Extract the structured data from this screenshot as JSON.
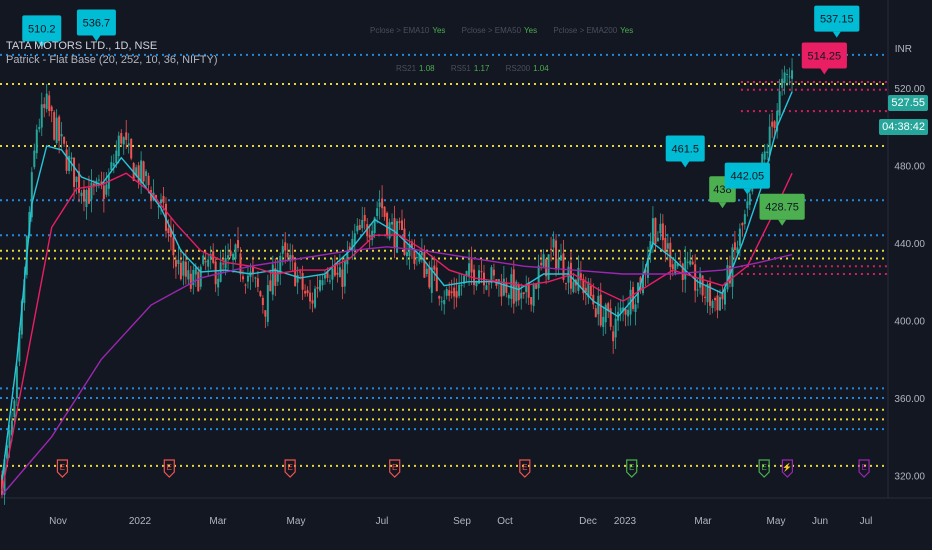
{
  "header": {
    "symbol_line": "TATA MOTORS LTD., 1D, NSE",
    "indicator_line": "Patrick - Flat Base (20, 252, 10, 36, NIFTY)"
  },
  "ema_panel": {
    "row1": [
      {
        "label": "Pclose > EMA10",
        "value": "Yes"
      },
      {
        "label": "Pclose > EMA50",
        "value": "Yes"
      },
      {
        "label": "Pclose > EMA200",
        "value": "Yes"
      }
    ],
    "row2": [
      {
        "label": "RS21",
        "value": "1.08"
      },
      {
        "label": "RS51",
        "value": "1.17"
      },
      {
        "label": "RS200",
        "value": "1.04"
      }
    ]
  },
  "price_axis": {
    "currency": "INR",
    "current_price": "527.55",
    "countdown": "04:38:42"
  },
  "colors": {
    "background": "#131722",
    "up": "#26a69a",
    "down": "#ef5350",
    "ema_short": "#26c6da",
    "ema_mid": "#e91e63",
    "ema_long": "#9c27b0",
    "level_blue": "#2196f3",
    "level_yellow": "#ffeb3b",
    "marker_cyan": "#00bcd4",
    "marker_green": "#4caf50",
    "marker_pink": "#e91e63"
  },
  "chart_data": {
    "type": "candlestick",
    "title": "TATA MOTORS LTD., 1D, NSE",
    "x_ticks": [
      "Nov",
      "2022",
      "Mar",
      "May",
      "Jul",
      "Sep",
      "Oct",
      "Dec",
      "2023",
      "Mar",
      "May",
      "Jun",
      "Jul"
    ],
    "y_ticks": [
      320,
      360,
      400,
      440,
      480,
      520
    ],
    "ylim": [
      310,
      555
    ],
    "grid": false,
    "close_path": [
      [
        0,
        318
      ],
      [
        5,
        352
      ],
      [
        10,
        440
      ],
      [
        14,
        500
      ],
      [
        18,
        510
      ],
      [
        24,
        490
      ],
      [
        30,
        472
      ],
      [
        36,
        465
      ],
      [
        42,
        468
      ],
      [
        48,
        496
      ],
      [
        52,
        480
      ],
      [
        58,
        472
      ],
      [
        64,
        458
      ],
      [
        70,
        430
      ],
      [
        76,
        418
      ],
      [
        82,
        428
      ],
      [
        88,
        425
      ],
      [
        94,
        432
      ],
      [
        100,
        422
      ],
      [
        106,
        408
      ],
      [
        112,
        434
      ],
      [
        118,
        425
      ],
      [
        124,
        408
      ],
      [
        130,
        430
      ],
      [
        136,
        420
      ],
      [
        142,
        442
      ],
      [
        148,
        450
      ],
      [
        152,
        462
      ],
      [
        156,
        448
      ],
      [
        162,
        440
      ],
      [
        168,
        432
      ],
      [
        174,
        420
      ],
      [
        180,
        412
      ],
      [
        186,
        420
      ],
      [
        192,
        428
      ],
      [
        198,
        420
      ],
      [
        204,
        418
      ],
      [
        210,
        408
      ],
      [
        216,
        424
      ],
      [
        222,
        435
      ],
      [
        228,
        425
      ],
      [
        234,
        418
      ],
      [
        240,
        406
      ],
      [
        246,
        396
      ],
      [
        252,
        410
      ],
      [
        258,
        422
      ],
      [
        262,
        450
      ],
      [
        266,
        440
      ],
      [
        270,
        432
      ],
      [
        274,
        428
      ],
      [
        280,
        418
      ],
      [
        286,
        410
      ],
      [
        290,
        412
      ],
      [
        294,
        430
      ],
      [
        298,
        448
      ],
      [
        302,
        465
      ],
      [
        306,
        480
      ],
      [
        310,
        500
      ],
      [
        314,
        520
      ],
      [
        318,
        527.55
      ]
    ],
    "series": [
      {
        "name": "",
        "points": [
          [
            0,
            318
          ],
          [
            6,
            380
          ],
          [
            12,
            460
          ],
          [
            18,
            490
          ],
          [
            24,
            488
          ],
          [
            32,
            474
          ],
          [
            40,
            470
          ],
          [
            48,
            484
          ],
          [
            56,
            472
          ],
          [
            64,
            458
          ],
          [
            72,
            436
          ],
          [
            80,
            425
          ],
          [
            90,
            426
          ],
          [
            100,
            424
          ],
          [
            110,
            426
          ],
          [
            120,
            422
          ],
          [
            130,
            424
          ],
          [
            140,
            436
          ],
          [
            150,
            452
          ],
          [
            158,
            446
          ],
          [
            168,
            434
          ],
          [
            178,
            418
          ],
          [
            188,
            420
          ],
          [
            198,
            420
          ],
          [
            208,
            416
          ],
          [
            218,
            424
          ],
          [
            228,
            424
          ],
          [
            238,
            410
          ],
          [
            248,
            402
          ],
          [
            256,
            414
          ],
          [
            262,
            440
          ],
          [
            270,
            432
          ],
          [
            280,
            420
          ],
          [
            290,
            414
          ],
          [
            298,
            440
          ],
          [
            306,
            470
          ],
          [
            312,
            500
          ],
          [
            318,
            518
          ]
        ]
      },
      {
        "name": "",
        "points": [
          [
            0,
            312
          ],
          [
            10,
            380
          ],
          [
            20,
            448
          ],
          [
            30,
            468
          ],
          [
            40,
            470
          ],
          [
            50,
            476
          ],
          [
            60,
            466
          ],
          [
            70,
            450
          ],
          [
            80,
            436
          ],
          [
            90,
            430
          ],
          [
            100,
            428
          ],
          [
            110,
            424
          ],
          [
            120,
            426
          ],
          [
            130,
            426
          ],
          [
            140,
            432
          ],
          [
            150,
            444
          ],
          [
            160,
            444
          ],
          [
            170,
            436
          ],
          [
            180,
            426
          ],
          [
            190,
            422
          ],
          [
            200,
            420
          ],
          [
            210,
            418
          ],
          [
            220,
            420
          ],
          [
            230,
            424
          ],
          [
            240,
            416
          ],
          [
            250,
            410
          ],
          [
            260,
            418
          ],
          [
            270,
            426
          ],
          [
            280,
            422
          ],
          [
            290,
            418
          ],
          [
            300,
            428
          ],
          [
            310,
            454
          ],
          [
            318,
            476
          ]
        ]
      },
      {
        "name": "",
        "points": [
          [
            0,
            310
          ],
          [
            20,
            340
          ],
          [
            40,
            380
          ],
          [
            60,
            408
          ],
          [
            80,
            422
          ],
          [
            100,
            428
          ],
          [
            120,
            432
          ],
          [
            140,
            436
          ],
          [
            155,
            438
          ],
          [
            170,
            436
          ],
          [
            190,
            432
          ],
          [
            210,
            428
          ],
          [
            230,
            426
          ],
          [
            250,
            424
          ],
          [
            270,
            424
          ],
          [
            290,
            426
          ],
          [
            305,
            430
          ],
          [
            318,
            434
          ]
        ]
      }
    ],
    "levels": [
      {
        "price": 537,
        "color": "blue"
      },
      {
        "price": 522,
        "color": "yellow"
      },
      {
        "price": 490,
        "color": "yellow"
      },
      {
        "price": 462,
        "color": "blue"
      },
      {
        "price": 444,
        "color": "blue"
      },
      {
        "price": 436,
        "color": "yellow"
      },
      {
        "price": 432,
        "color": "yellow"
      },
      {
        "price": 365,
        "color": "blue"
      },
      {
        "price": 360,
        "color": "blue"
      },
      {
        "price": 354,
        "color": "yellow"
      },
      {
        "price": 349,
        "color": "yellow"
      },
      {
        "price": 344,
        "color": "blue"
      },
      {
        "price": 325,
        "color": "yellow"
      }
    ],
    "right_levels": [
      {
        "price": 523,
        "color": "pink"
      },
      {
        "price": 519,
        "color": "pink"
      },
      {
        "price": 508,
        "color": "pink"
      },
      {
        "price": 428,
        "color": "pink"
      },
      {
        "price": 424,
        "color": "pink"
      }
    ],
    "markers": [
      {
        "x": 16,
        "price": 544,
        "label": "510.2",
        "color": "cyan"
      },
      {
        "x": 38,
        "price": 547,
        "label": "536.7",
        "color": "cyan"
      },
      {
        "x": 275,
        "price": 482,
        "label": "461.5",
        "color": "cyan"
      },
      {
        "x": 290,
        "price": 461,
        "label": "438",
        "color": "green"
      },
      {
        "x": 300,
        "price": 468,
        "label": "442.05",
        "color": "cyan"
      },
      {
        "x": 314,
        "price": 452,
        "label": "428.75",
        "color": "green"
      },
      {
        "x": 336,
        "price": 549,
        "label": "537.15",
        "color": "cyan"
      },
      {
        "x": 331,
        "price": 530,
        "label": "514.25",
        "color": "pink"
      }
    ],
    "events": [
      {
        "x": 26,
        "symbol": "E",
        "color": "red"
      },
      {
        "x": 72,
        "symbol": "E",
        "color": "red"
      },
      {
        "x": 124,
        "symbol": "E",
        "color": "red"
      },
      {
        "x": 169,
        "symbol": "E",
        "color": "red"
      },
      {
        "x": 225,
        "symbol": "E",
        "color": "red"
      },
      {
        "x": 271,
        "symbol": "E",
        "color": "green"
      },
      {
        "x": 328,
        "symbol": "E",
        "color": "green"
      },
      {
        "x": 338,
        "symbol": "⚡",
        "color": "purple"
      },
      {
        "x": 371,
        "symbol": "E",
        "color": "purple"
      }
    ]
  }
}
